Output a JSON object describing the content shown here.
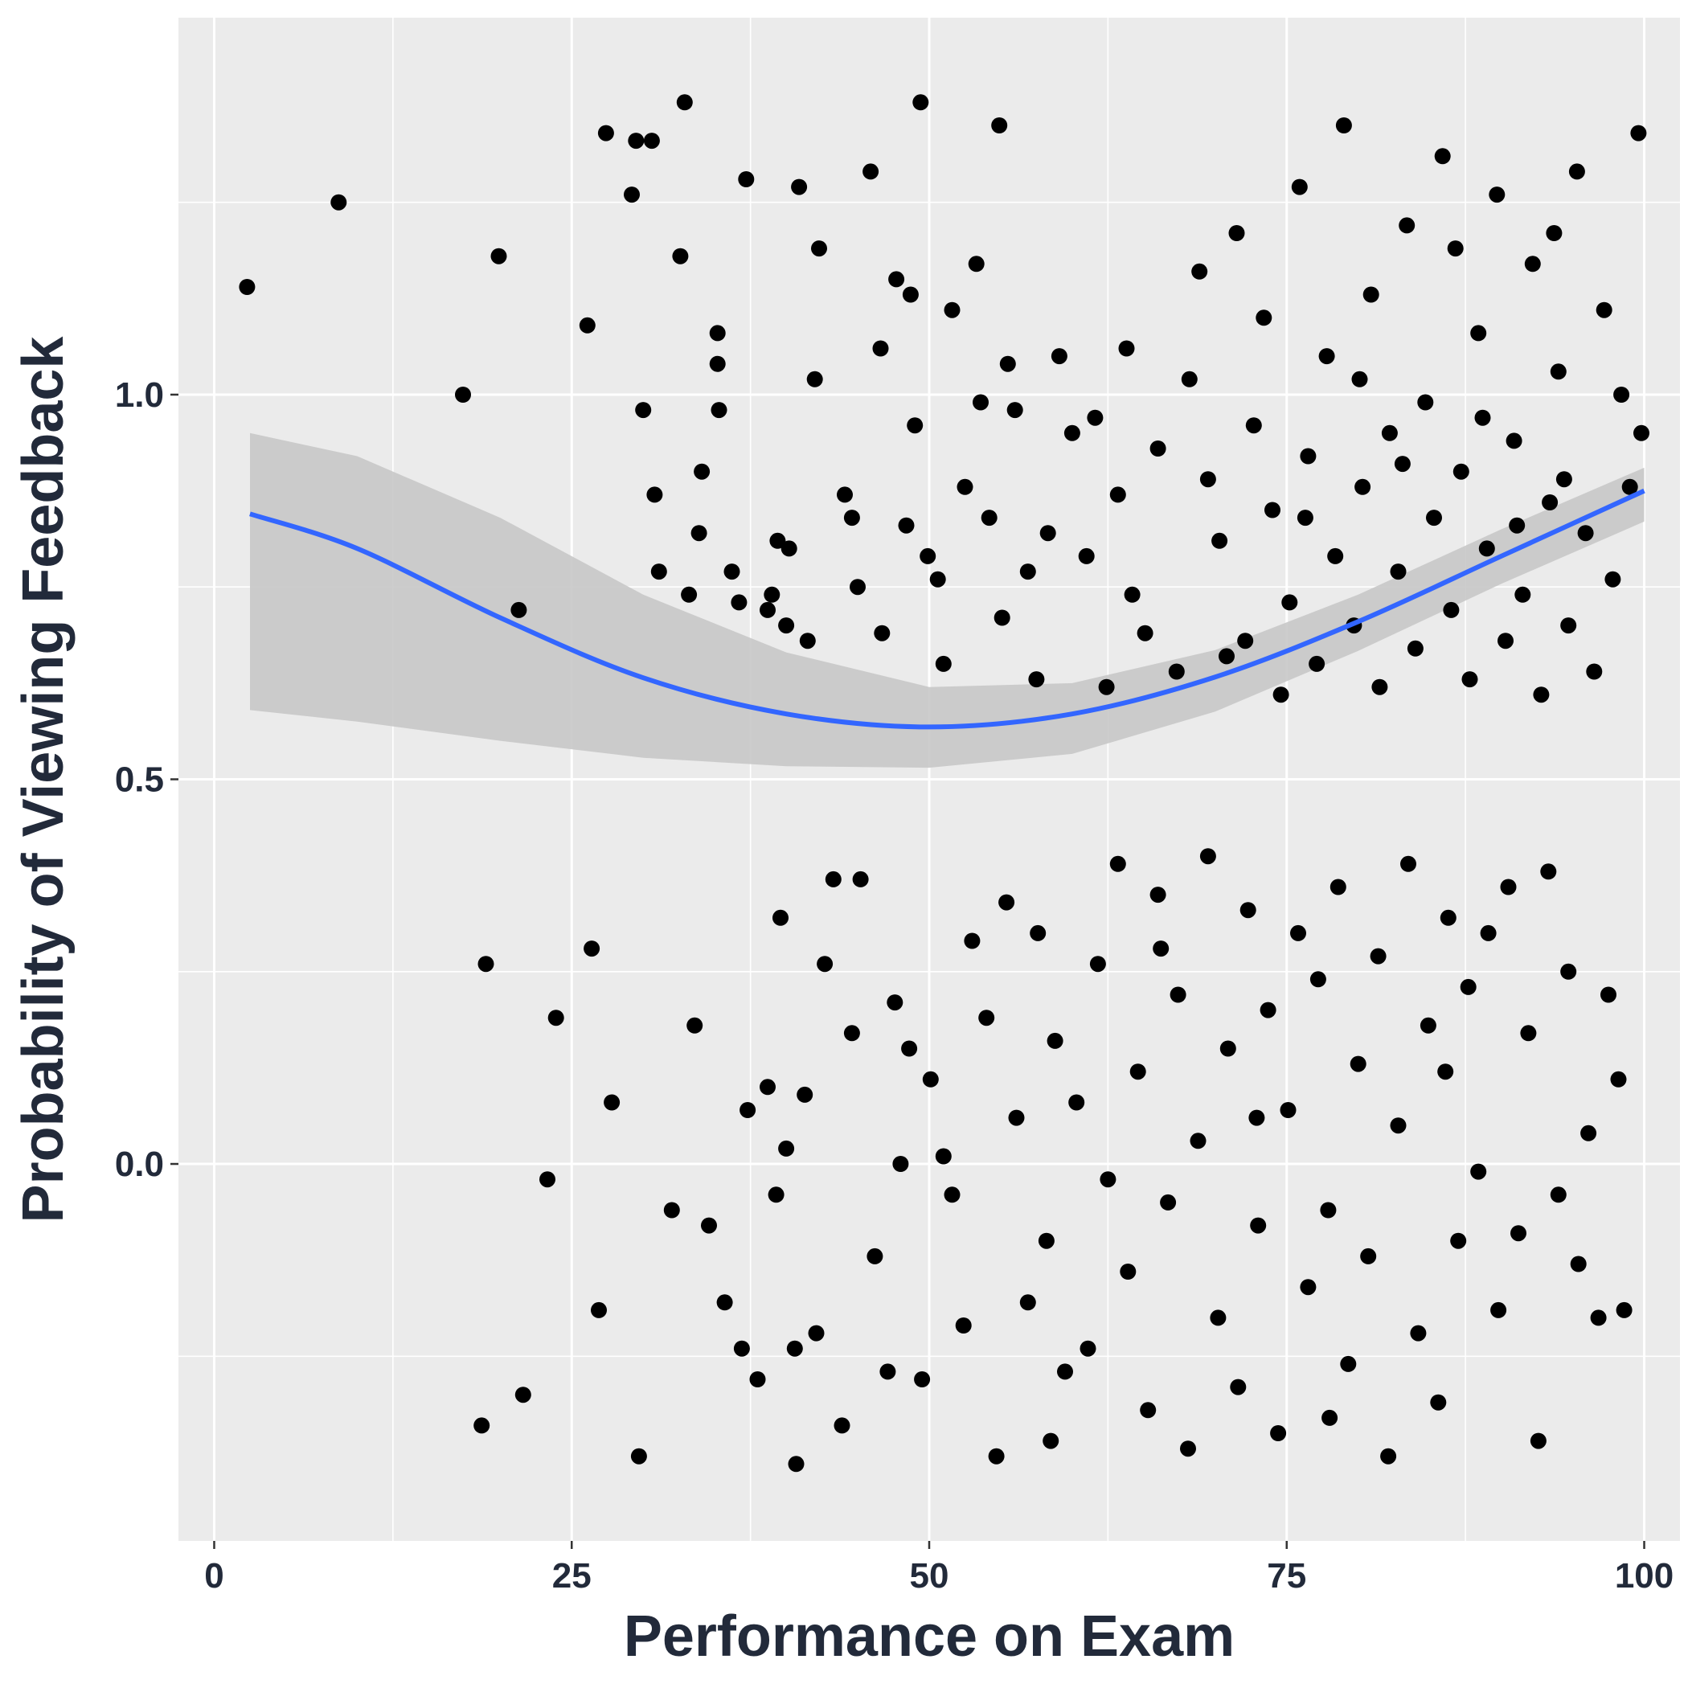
{
  "chart_data": {
    "type": "scatter",
    "title": "",
    "xlabel": "Performance on Exam",
    "ylabel": "Probability of Viewing Feedback",
    "xlim": [
      -2.5,
      102.5
    ],
    "ylim": [
      -0.49,
      1.49
    ],
    "x_ticks": [
      0,
      25,
      50,
      75,
      100
    ],
    "x_tick_labels": [
      "0",
      "25",
      "50",
      "75",
      "100"
    ],
    "y_ticks": [
      0.0,
      0.5,
      1.0
    ],
    "y_tick_labels": [
      "0.0",
      "0.5",
      "1.0"
    ],
    "grid": true,
    "legend": "none",
    "point_color": "#000000",
    "series": [
      {
        "values_note": "jittered binary outcome (1 = viewed, 0 = not viewed)",
        "points": [
          [
            2.3,
            1.14
          ],
          [
            8.7,
            1.25
          ],
          [
            17.4,
            1.0
          ],
          [
            19.9,
            1.18
          ],
          [
            21.3,
            0.72
          ],
          [
            26.1,
            1.09
          ],
          [
            27.4,
            1.34
          ],
          [
            29.2,
            1.26
          ],
          [
            29.5,
            1.33
          ],
          [
            30.0,
            0.98
          ],
          [
            30.6,
            1.33
          ],
          [
            30.8,
            0.87
          ],
          [
            31.1,
            0.77
          ],
          [
            32.6,
            1.18
          ],
          [
            32.9,
            1.38
          ],
          [
            33.2,
            0.74
          ],
          [
            33.9,
            0.82
          ],
          [
            34.1,
            0.9
          ],
          [
            35.2,
            1.08
          ],
          [
            35.2,
            1.04
          ],
          [
            35.3,
            0.98
          ],
          [
            36.2,
            0.77
          ],
          [
            36.7,
            0.73
          ],
          [
            37.2,
            1.28
          ],
          [
            38.7,
            0.72
          ],
          [
            39.0,
            0.74
          ],
          [
            39.4,
            0.81
          ],
          [
            40.0,
            0.7
          ],
          [
            40.2,
            0.8
          ],
          [
            40.9,
            1.27
          ],
          [
            41.5,
            0.68
          ],
          [
            42.0,
            1.02
          ],
          [
            42.3,
            1.19
          ],
          [
            44.1,
            0.87
          ],
          [
            44.6,
            0.84
          ],
          [
            45.0,
            0.75
          ],
          [
            45.9,
            1.29
          ],
          [
            46.6,
            1.06
          ],
          [
            46.7,
            0.69
          ],
          [
            47.7,
            1.15
          ],
          [
            48.4,
            0.83
          ],
          [
            48.7,
            1.13
          ],
          [
            49.0,
            0.96
          ],
          [
            49.4,
            1.38
          ],
          [
            49.9,
            0.79
          ],
          [
            50.6,
            0.76
          ],
          [
            51.0,
            0.65
          ],
          [
            51.6,
            1.11
          ],
          [
            52.5,
            0.88
          ],
          [
            53.3,
            1.17
          ],
          [
            53.6,
            0.99
          ],
          [
            54.2,
            0.84
          ],
          [
            54.9,
            1.35
          ],
          [
            55.1,
            0.71
          ],
          [
            55.5,
            1.04
          ],
          [
            56.0,
            0.98
          ],
          [
            56.9,
            0.77
          ],
          [
            57.5,
            0.63
          ],
          [
            58.3,
            0.82
          ],
          [
            59.1,
            1.05
          ],
          [
            60.0,
            0.95
          ],
          [
            61.0,
            0.79
          ],
          [
            61.6,
            0.97
          ],
          [
            62.4,
            0.62
          ],
          [
            63.2,
            0.87
          ],
          [
            63.8,
            1.06
          ],
          [
            64.2,
            0.74
          ],
          [
            65.1,
            0.69
          ],
          [
            66.0,
            0.93
          ],
          [
            67.3,
            0.64
          ],
          [
            68.2,
            1.02
          ],
          [
            68.9,
            1.16
          ],
          [
            69.5,
            0.89
          ],
          [
            70.3,
            0.81
          ],
          [
            70.8,
            0.66
          ],
          [
            71.5,
            1.21
          ],
          [
            72.1,
            0.68
          ],
          [
            72.7,
            0.96
          ],
          [
            73.4,
            1.1
          ],
          [
            74.0,
            0.85
          ],
          [
            74.6,
            0.61
          ],
          [
            75.2,
            0.73
          ],
          [
            75.9,
            1.27
          ],
          [
            76.5,
            0.92
          ],
          [
            77.1,
            0.65
          ],
          [
            77.8,
            1.05
          ],
          [
            78.4,
            0.79
          ],
          [
            79.0,
            1.35
          ],
          [
            79.7,
            0.7
          ],
          [
            80.3,
            0.88
          ],
          [
            80.9,
            1.13
          ],
          [
            81.5,
            0.62
          ],
          [
            82.2,
            0.95
          ],
          [
            82.8,
            0.77
          ],
          [
            83.4,
            1.22
          ],
          [
            84.0,
            0.67
          ],
          [
            84.7,
            0.99
          ],
          [
            85.3,
            0.84
          ],
          [
            85.9,
            1.31
          ],
          [
            86.5,
            0.72
          ],
          [
            87.2,
            0.9
          ],
          [
            87.8,
            0.63
          ],
          [
            88.4,
            1.08
          ],
          [
            89.0,
            0.8
          ],
          [
            89.7,
            1.26
          ],
          [
            90.3,
            0.68
          ],
          [
            90.9,
            0.94
          ],
          [
            91.5,
            0.74
          ],
          [
            92.2,
            1.17
          ],
          [
            92.8,
            0.61
          ],
          [
            93.4,
            0.86
          ],
          [
            94.0,
            1.03
          ],
          [
            94.7,
            0.7
          ],
          [
            95.3,
            1.29
          ],
          [
            95.9,
            0.82
          ],
          [
            96.5,
            0.64
          ],
          [
            97.2,
            1.11
          ],
          [
            97.8,
            0.76
          ],
          [
            98.4,
            1.0
          ],
          [
            99.0,
            0.88
          ],
          [
            99.6,
            1.34
          ],
          [
            99.8,
            0.95
          ],
          [
            83.1,
            0.91
          ],
          [
            86.8,
            1.19
          ],
          [
            91.1,
            0.83
          ],
          [
            94.4,
            0.89
          ],
          [
            88.7,
            0.97
          ],
          [
            80.1,
            1.02
          ],
          [
            76.3,
            0.84
          ],
          [
            93.7,
            1.21
          ],
          [
            18.7,
            -0.34
          ],
          [
            19.0,
            0.26
          ],
          [
            21.6,
            -0.3
          ],
          [
            23.3,
            -0.02
          ],
          [
            23.9,
            0.19
          ],
          [
            26.4,
            0.28
          ],
          [
            26.9,
            -0.19
          ],
          [
            27.8,
            0.08
          ],
          [
            29.7,
            -0.38
          ],
          [
            32.0,
            -0.06
          ],
          [
            33.6,
            0.18
          ],
          [
            34.6,
            -0.08
          ],
          [
            35.7,
            -0.18
          ],
          [
            36.9,
            -0.24
          ],
          [
            37.3,
            0.07
          ],
          [
            38.0,
            -0.28
          ],
          [
            38.7,
            0.1
          ],
          [
            39.3,
            -0.04
          ],
          [
            39.6,
            0.32
          ],
          [
            40.0,
            0.02
          ],
          [
            40.6,
            -0.24
          ],
          [
            40.7,
            -0.39
          ],
          [
            41.3,
            0.09
          ],
          [
            42.1,
            -0.22
          ],
          [
            42.7,
            0.26
          ],
          [
            43.3,
            0.37
          ],
          [
            43.9,
            -0.34
          ],
          [
            44.6,
            0.17
          ],
          [
            45.2,
            0.37
          ],
          [
            46.2,
            -0.12
          ],
          [
            47.1,
            -0.27
          ],
          [
            47.6,
            0.21
          ],
          [
            48.0,
            0.0
          ],
          [
            48.6,
            0.15
          ],
          [
            49.5,
            -0.28
          ],
          [
            50.1,
            0.11
          ],
          [
            51.0,
            0.01
          ],
          [
            51.6,
            -0.04
          ],
          [
            52.4,
            -0.21
          ],
          [
            53.0,
            0.29
          ],
          [
            54.0,
            0.19
          ],
          [
            54.7,
            -0.38
          ],
          [
            55.4,
            0.34
          ],
          [
            56.1,
            0.06
          ],
          [
            56.9,
            -0.18
          ],
          [
            57.6,
            0.3
          ],
          [
            58.2,
            -0.1
          ],
          [
            58.8,
            0.16
          ],
          [
            59.5,
            -0.27
          ],
          [
            60.3,
            0.08
          ],
          [
            61.1,
            -0.24
          ],
          [
            61.8,
            0.26
          ],
          [
            62.5,
            -0.02
          ],
          [
            63.2,
            0.39
          ],
          [
            63.9,
            -0.14
          ],
          [
            64.6,
            0.12
          ],
          [
            65.3,
            -0.32
          ],
          [
            66.0,
            0.35
          ],
          [
            66.7,
            -0.05
          ],
          [
            67.4,
            0.22
          ],
          [
            68.1,
            -0.37
          ],
          [
            68.8,
            0.03
          ],
          [
            69.5,
            0.4
          ],
          [
            70.2,
            -0.2
          ],
          [
            70.9,
            0.15
          ],
          [
            71.6,
            -0.29
          ],
          [
            72.3,
            0.33
          ],
          [
            73.0,
            -0.08
          ],
          [
            73.7,
            0.2
          ],
          [
            74.4,
            -0.35
          ],
          [
            75.1,
            0.07
          ],
          [
            75.8,
            0.3
          ],
          [
            76.5,
            -0.16
          ],
          [
            77.2,
            0.24
          ],
          [
            77.9,
            -0.06
          ],
          [
            78.6,
            0.36
          ],
          [
            79.3,
            -0.26
          ],
          [
            80.0,
            0.13
          ],
          [
            80.7,
            -0.12
          ],
          [
            81.4,
            0.27
          ],
          [
            82.1,
            -0.38
          ],
          [
            82.8,
            0.05
          ],
          [
            83.5,
            0.39
          ],
          [
            84.2,
            -0.22
          ],
          [
            84.9,
            0.18
          ],
          [
            85.6,
            -0.31
          ],
          [
            86.3,
            0.32
          ],
          [
            87.0,
            -0.1
          ],
          [
            87.7,
            0.23
          ],
          [
            88.4,
            -0.01
          ],
          [
            89.1,
            0.3
          ],
          [
            89.8,
            -0.19
          ],
          [
            90.5,
            0.36
          ],
          [
            91.2,
            -0.09
          ],
          [
            91.9,
            0.17
          ],
          [
            92.6,
            -0.36
          ],
          [
            93.3,
            0.38
          ],
          [
            94.0,
            -0.04
          ],
          [
            94.7,
            0.25
          ],
          [
            95.4,
            -0.13
          ],
          [
            96.1,
            0.04
          ],
          [
            96.8,
            -0.2
          ],
          [
            97.5,
            0.22
          ],
          [
            98.2,
            0.11
          ],
          [
            98.6,
            -0.19
          ],
          [
            86.1,
            0.12
          ],
          [
            78.0,
            -0.33
          ],
          [
            72.9,
            0.06
          ],
          [
            66.2,
            0.28
          ],
          [
            58.5,
            -0.36
          ]
        ]
      }
    ],
    "smooth": {
      "color": "#3366ff",
      "ribbon_color": "#c8c8c8",
      "x": [
        2.5,
        10,
        20,
        30,
        40,
        50,
        60,
        70,
        80,
        90,
        100
      ],
      "y": [
        0.845,
        0.8,
        0.71,
        0.632,
        0.585,
        0.568,
        0.585,
        0.633,
        0.705,
        0.79,
        0.875
      ],
      "lower": [
        0.59,
        0.575,
        0.55,
        0.528,
        0.517,
        0.515,
        0.533,
        0.588,
        0.667,
        0.754,
        0.835
      ],
      "upper": [
        0.95,
        0.92,
        0.84,
        0.74,
        0.665,
        0.62,
        0.625,
        0.668,
        0.74,
        0.825,
        0.905
      ]
    }
  }
}
